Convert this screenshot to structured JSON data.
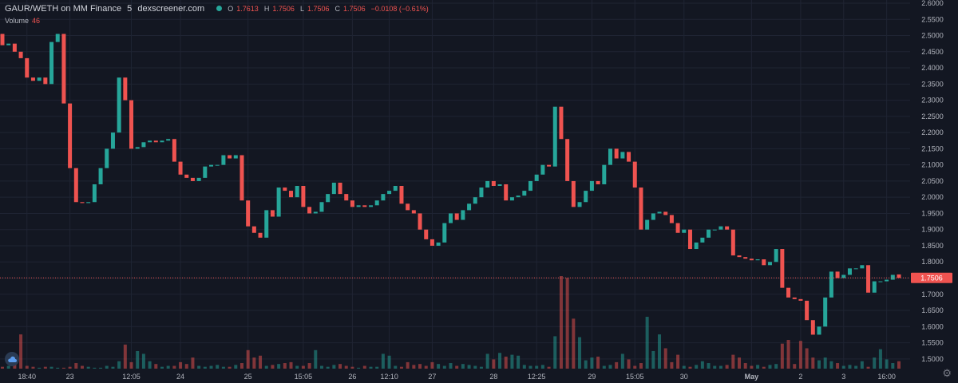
{
  "header": {
    "title": "GAUR/WETH on MM Finance",
    "interval": "5",
    "source": "dexscreener.com",
    "open_label": "O",
    "open": "1.7613",
    "high_label": "H",
    "high": "1.7506",
    "low_label": "L",
    "low": "1.7506",
    "close_label": "C",
    "close": "1.7506",
    "change": "−0.0108 (−0.61%)",
    "volume_label": "Volume",
    "volume_value": "46"
  },
  "colors": {
    "up": "#26a69a",
    "down": "#ef5350",
    "background": "#131722",
    "grid": "#1f2433"
  },
  "icons": {
    "logo": "tradingview-cloud-icon",
    "settings": "gear-icon"
  },
  "chart_data": {
    "type": "candlestick",
    "ylim": [
      1.47,
      2.6
    ],
    "y_ticks": [
      "2.6000",
      "2.5500",
      "2.5000",
      "2.4500",
      "2.4000",
      "2.3500",
      "2.3000",
      "2.2500",
      "2.2000",
      "2.1500",
      "2.1000",
      "2.0500",
      "2.0000",
      "1.9500",
      "1.9000",
      "1.8500",
      "1.8000",
      "1.7500",
      "1.7000",
      "1.6500",
      "1.6000",
      "1.5500",
      "1.5000"
    ],
    "y_tick_values": [
      2.6,
      2.55,
      2.5,
      2.45,
      2.4,
      2.35,
      2.3,
      2.25,
      2.2,
      2.15,
      2.1,
      2.05,
      2.0,
      1.95,
      1.9,
      1.85,
      1.8,
      1.75,
      1.7,
      1.65,
      1.6,
      1.55,
      1.5
    ],
    "x_ticks": [
      {
        "label": "18:40",
        "i": 4
      },
      {
        "label": "23",
        "i": 11
      },
      {
        "label": "12:05",
        "i": 21
      },
      {
        "label": "24",
        "i": 29
      },
      {
        "label": "25",
        "i": 40
      },
      {
        "label": "15:05",
        "i": 49
      },
      {
        "label": "26",
        "i": 57
      },
      {
        "label": "12:10",
        "i": 63
      },
      {
        "label": "27",
        "i": 70
      },
      {
        "label": "28",
        "i": 80
      },
      {
        "label": "12:25",
        "i": 87
      },
      {
        "label": "29",
        "i": 96
      },
      {
        "label": "15:05",
        "i": 103
      },
      {
        "label": "30",
        "i": 111
      },
      {
        "label": "May",
        "i": 122
      },
      {
        "label": "2",
        "i": 130
      },
      {
        "label": "3",
        "i": 137
      },
      {
        "label": "16:00",
        "i": 144
      }
    ],
    "last_price": 1.7506,
    "last_price_label": "1.7506",
    "candles": [
      [
        2.505,
        2.47
      ],
      [
        2.47,
        2.475
      ],
      [
        2.475,
        2.45
      ],
      [
        2.45,
        2.43
      ],
      [
        2.43,
        2.37
      ],
      [
        2.37,
        2.36
      ],
      [
        2.36,
        2.37
      ],
      [
        2.37,
        2.35
      ],
      [
        2.35,
        2.48
      ],
      [
        2.48,
        2.505
      ],
      [
        2.505,
        2.29
      ],
      [
        2.29,
        2.09
      ],
      [
        2.09,
        1.985
      ],
      [
        1.985,
        1.982
      ],
      [
        1.982,
        1.985
      ],
      [
        1.985,
        2.04
      ],
      [
        2.04,
        2.09
      ],
      [
        2.09,
        2.15
      ],
      [
        2.15,
        2.2
      ],
      [
        2.2,
        2.37
      ],
      [
        2.37,
        2.3
      ],
      [
        2.3,
        2.15
      ],
      [
        2.15,
        2.155
      ],
      [
        2.155,
        2.17
      ],
      [
        2.17,
        2.175
      ],
      [
        2.175,
        2.17
      ],
      [
        2.17,
        2.175
      ],
      [
        2.175,
        2.18
      ],
      [
        2.18,
        2.11
      ],
      [
        2.11,
        2.07
      ],
      [
        2.07,
        2.06
      ],
      [
        2.06,
        2.05
      ],
      [
        2.05,
        2.06
      ],
      [
        2.06,
        2.095
      ],
      [
        2.095,
        2.1
      ],
      [
        2.1,
        2.1
      ],
      [
        2.1,
        2.13
      ],
      [
        2.13,
        2.12
      ],
      [
        2.12,
        2.13
      ],
      [
        2.13,
        1.99
      ],
      [
        1.99,
        1.91
      ],
      [
        1.91,
        1.89
      ],
      [
        1.89,
        1.875
      ],
      [
        1.875,
        1.96
      ],
      [
        1.96,
        1.94
      ],
      [
        1.94,
        2.03
      ],
      [
        2.03,
        2.02
      ],
      [
        2.02,
        2.0
      ],
      [
        2.0,
        2.035
      ],
      [
        2.035,
        1.97
      ],
      [
        1.97,
        1.95
      ],
      [
        1.95,
        1.955
      ],
      [
        1.955,
        1.985
      ],
      [
        1.985,
        2.01
      ],
      [
        2.01,
        2.045
      ],
      [
        2.045,
        2.01
      ],
      [
        2.01,
        1.99
      ],
      [
        1.99,
        1.97
      ],
      [
        1.97,
        1.975
      ],
      [
        1.975,
        1.97
      ],
      [
        1.97,
        1.975
      ],
      [
        1.975,
        1.99
      ],
      [
        1.99,
        2.01
      ],
      [
        2.01,
        2.02
      ],
      [
        2.02,
        2.035
      ],
      [
        2.035,
        1.98
      ],
      [
        1.98,
        1.96
      ],
      [
        1.96,
        1.95
      ],
      [
        1.95,
        1.9
      ],
      [
        1.9,
        1.87
      ],
      [
        1.87,
        1.85
      ],
      [
        1.85,
        1.86
      ],
      [
        1.86,
        1.92
      ],
      [
        1.92,
        1.95
      ],
      [
        1.95,
        1.93
      ],
      [
        1.93,
        1.96
      ],
      [
        1.96,
        1.98
      ],
      [
        1.98,
        2.0
      ],
      [
        2.0,
        2.03
      ],
      [
        2.03,
        2.05
      ],
      [
        2.05,
        2.035
      ],
      [
        2.035,
        2.04
      ],
      [
        2.04,
        1.99
      ],
      [
        1.99,
        2.0
      ],
      [
        2.0,
        2.005
      ],
      [
        2.005,
        2.02
      ],
      [
        2.02,
        2.05
      ],
      [
        2.05,
        2.07
      ],
      [
        2.07,
        2.1
      ],
      [
        2.1,
        2.095
      ],
      [
        2.095,
        2.28
      ],
      [
        2.28,
        2.18
      ],
      [
        2.18,
        2.05
      ],
      [
        2.05,
        1.97
      ],
      [
        1.97,
        1.985
      ],
      [
        1.985,
        2.02
      ],
      [
        2.02,
        2.05
      ],
      [
        2.05,
        2.04
      ],
      [
        2.04,
        2.1
      ],
      [
        2.1,
        2.15
      ],
      [
        2.15,
        2.12
      ],
      [
        2.12,
        2.14
      ],
      [
        2.14,
        2.11
      ],
      [
        2.11,
        2.03
      ],
      [
        2.03,
        1.9
      ],
      [
        1.9,
        1.93
      ],
      [
        1.93,
        1.95
      ],
      [
        1.95,
        1.955
      ],
      [
        1.955,
        1.945
      ],
      [
        1.945,
        1.92
      ],
      [
        1.92,
        1.89
      ],
      [
        1.89,
        1.9
      ],
      [
        1.9,
        1.84
      ],
      [
        1.84,
        1.86
      ],
      [
        1.86,
        1.875
      ],
      [
        1.875,
        1.9
      ],
      [
        1.9,
        1.9
      ],
      [
        1.9,
        1.91
      ],
      [
        1.91,
        1.9
      ],
      [
        1.9,
        1.82
      ],
      [
        1.82,
        1.815
      ],
      [
        1.815,
        1.81
      ],
      [
        1.81,
        1.805
      ],
      [
        1.805,
        1.808
      ],
      [
        1.808,
        1.79
      ],
      [
        1.79,
        1.8
      ],
      [
        1.8,
        1.84
      ],
      [
        1.84,
        1.72
      ],
      [
        1.72,
        1.69
      ],
      [
        1.69,
        1.685
      ],
      [
        1.685,
        1.68
      ],
      [
        1.68,
        1.62
      ],
      [
        1.62,
        1.575
      ],
      [
        1.575,
        1.6
      ],
      [
        1.6,
        1.69
      ],
      [
        1.69,
        1.77
      ],
      [
        1.77,
        1.75
      ],
      [
        1.75,
        1.76
      ],
      [
        1.76,
        1.78
      ],
      [
        1.78,
        1.78
      ],
      [
        1.78,
        1.79
      ],
      [
        1.79,
        1.705
      ],
      [
        1.705,
        1.74
      ],
      [
        1.74,
        1.74
      ],
      [
        1.74,
        1.745
      ],
      [
        1.745,
        1.76
      ],
      [
        1.7613,
        1.7506
      ]
    ],
    "volumes": [
      2,
      3,
      5,
      37,
      3,
      2,
      1,
      2,
      2,
      1,
      1,
      2,
      6,
      3,
      2,
      1,
      1,
      3,
      2,
      8,
      26,
      7,
      19,
      16,
      8,
      5,
      2,
      3,
      3,
      7,
      5,
      12,
      3,
      2,
      3,
      4,
      2,
      2,
      4,
      6,
      20,
      12,
      14,
      3,
      4,
      5,
      6,
      7,
      3,
      3,
      6,
      20,
      3,
      2,
      4,
      5,
      3,
      2,
      1,
      3,
      2,
      2,
      16,
      14,
      3,
      2,
      7,
      4,
      5,
      3,
      7,
      5,
      3,
      6,
      3,
      5,
      4,
      3,
      2,
      16,
      10,
      17,
      13,
      15,
      14,
      4,
      3,
      3,
      4,
      2,
      35,
      100,
      98,
      54,
      34,
      9,
      12,
      13,
      3,
      4,
      7,
      16,
      10,
      3,
      6,
      56,
      19,
      37,
      22,
      7,
      15,
      3,
      2,
      4,
      8,
      6,
      3,
      3,
      4,
      15,
      12,
      6,
      3,
      4,
      2,
      4,
      5,
      27,
      31,
      5,
      30,
      22,
      12,
      9,
      12,
      8,
      6,
      3,
      4,
      3,
      8,
      2,
      12,
      21,
      10,
      6,
      8
    ],
    "volumes_note": ""
  }
}
